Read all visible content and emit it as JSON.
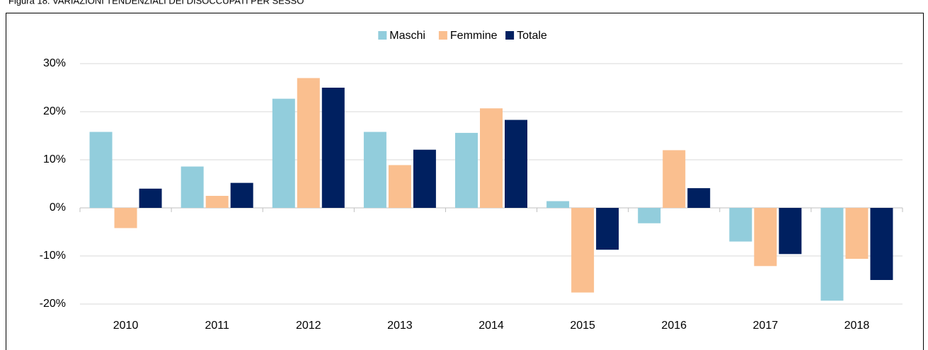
{
  "chart_data": {
    "type": "bar",
    "title": "Figura 18. VARIAZIONI TENDENZIALI DEI DISOCCUPATI PER SESSO",
    "categories": [
      "2010",
      "2011",
      "2012",
      "2013",
      "2014",
      "2015",
      "2016",
      "2017",
      "2018"
    ],
    "series": [
      {
        "name": "Maschi",
        "color": "#92cddc",
        "values": [
          15.8,
          8.6,
          22.7,
          15.8,
          15.6,
          1.4,
          -3.2,
          -7.0,
          -19.3
        ]
      },
      {
        "name": "Femmine",
        "color": "#fabf8f",
        "values": [
          -4.2,
          2.5,
          27.0,
          8.9,
          20.7,
          -17.6,
          12.0,
          -12.1,
          -10.6
        ]
      },
      {
        "name": "Totale",
        "color": "#002060",
        "values": [
          4.0,
          5.2,
          25.0,
          12.1,
          18.3,
          -8.7,
          4.1,
          -9.6,
          -15.0
        ]
      }
    ],
    "ylim": [
      -20,
      30
    ],
    "yticks": [
      {
        "value": -20,
        "label": "-20%"
      },
      {
        "value": -10,
        "label": "-10%"
      },
      {
        "value": 0,
        "label": "0%"
      },
      {
        "value": 10,
        "label": "10%"
      },
      {
        "value": 20,
        "label": "20%"
      },
      {
        "value": 30,
        "label": "30%"
      }
    ],
    "grid": true,
    "legend": "top"
  }
}
